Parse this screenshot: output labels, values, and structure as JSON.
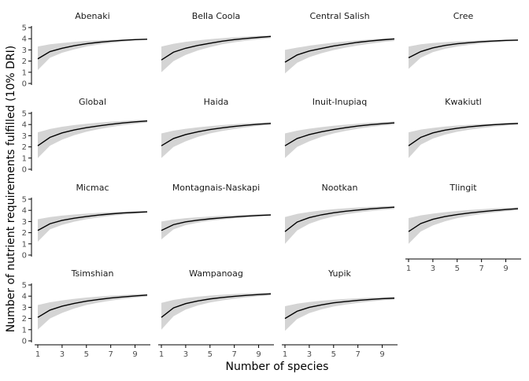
{
  "chart_data": {
    "type": "line",
    "ylabel": "Number of nutrient requirements fulfilled (10% DRI)",
    "xlabel": "Number of species",
    "x": [
      1,
      2,
      3,
      4,
      5,
      6,
      7,
      8,
      9,
      10
    ],
    "xticks": [
      1,
      3,
      5,
      7,
      9
    ],
    "yticks": [
      0,
      1,
      2,
      3,
      4,
      5
    ],
    "xlim": [
      1,
      10
    ],
    "ylim": [
      0,
      5
    ],
    "grid": false,
    "band": "shaded range around mean curve",
    "colors": {
      "line": "#000000",
      "band": "#d4d4d4"
    },
    "panels": [
      {
        "name": "Abenaki",
        "mean": [
          2.2,
          2.85,
          3.15,
          3.38,
          3.55,
          3.68,
          3.78,
          3.86,
          3.92,
          3.96
        ],
        "lower": [
          1.2,
          2.3,
          2.75,
          3.05,
          3.3,
          3.48,
          3.62,
          3.74,
          3.84,
          3.9
        ],
        "upper": [
          3.3,
          3.5,
          3.62,
          3.72,
          3.8,
          3.86,
          3.9,
          3.94,
          3.97,
          3.99
        ]
      },
      {
        "name": "Bella Coola",
        "mean": [
          2.1,
          2.8,
          3.15,
          3.4,
          3.6,
          3.78,
          3.92,
          4.03,
          4.12,
          4.2
        ],
        "lower": [
          1.0,
          2.0,
          2.55,
          2.95,
          3.25,
          3.5,
          3.68,
          3.83,
          3.95,
          4.05
        ],
        "upper": [
          3.3,
          3.55,
          3.72,
          3.85,
          3.96,
          4.05,
          4.13,
          4.2,
          4.26,
          4.3
        ]
      },
      {
        "name": "Central Salish",
        "mean": [
          1.9,
          2.55,
          2.9,
          3.13,
          3.35,
          3.52,
          3.68,
          3.8,
          3.9,
          3.98
        ],
        "lower": [
          0.9,
          1.85,
          2.35,
          2.7,
          2.98,
          3.2,
          3.4,
          3.56,
          3.7,
          3.8
        ],
        "upper": [
          3.0,
          3.2,
          3.38,
          3.52,
          3.65,
          3.76,
          3.86,
          3.94,
          4.01,
          4.06
        ]
      },
      {
        "name": "Cree",
        "mean": [
          2.3,
          2.85,
          3.18,
          3.4,
          3.55,
          3.65,
          3.74,
          3.8,
          3.85,
          3.88
        ],
        "lower": [
          1.3,
          2.3,
          2.8,
          3.1,
          3.3,
          3.45,
          3.57,
          3.66,
          3.74,
          3.8
        ],
        "upper": [
          3.3,
          3.5,
          3.62,
          3.7,
          3.76,
          3.81,
          3.85,
          3.88,
          3.91,
          3.93
        ]
      },
      {
        "name": "Global",
        "mean": [
          2.1,
          2.85,
          3.25,
          3.52,
          3.72,
          3.88,
          4.02,
          4.14,
          4.24,
          4.32
        ],
        "lower": [
          1.0,
          2.1,
          2.65,
          3.05,
          3.35,
          3.58,
          3.78,
          3.94,
          4.07,
          4.18
        ],
        "upper": [
          3.3,
          3.6,
          3.8,
          3.95,
          4.07,
          4.17,
          4.25,
          4.32,
          4.38,
          4.43
        ]
      },
      {
        "name": "Haida",
        "mean": [
          2.1,
          2.75,
          3.1,
          3.35,
          3.55,
          3.7,
          3.83,
          3.94,
          4.03,
          4.1
        ],
        "lower": [
          1.0,
          2.0,
          2.5,
          2.9,
          3.2,
          3.42,
          3.6,
          3.75,
          3.88,
          3.98
        ],
        "upper": [
          3.2,
          3.45,
          3.62,
          3.75,
          3.86,
          3.95,
          4.03,
          4.1,
          4.16,
          4.2
        ]
      },
      {
        "name": "Inuit-Inupiaq",
        "mean": [
          2.1,
          2.75,
          3.1,
          3.35,
          3.55,
          3.72,
          3.87,
          3.98,
          4.07,
          4.15
        ],
        "lower": [
          1.0,
          2.0,
          2.5,
          2.9,
          3.2,
          3.43,
          3.63,
          3.78,
          3.9,
          4.0
        ],
        "upper": [
          3.2,
          3.45,
          3.63,
          3.77,
          3.89,
          3.99,
          4.08,
          4.16,
          4.22,
          4.27
        ]
      },
      {
        "name": "Kwakiutl",
        "mean": [
          2.1,
          2.85,
          3.25,
          3.5,
          3.67,
          3.8,
          3.9,
          3.98,
          4.05,
          4.1
        ],
        "lower": [
          1.0,
          2.2,
          2.75,
          3.1,
          3.35,
          3.54,
          3.68,
          3.8,
          3.9,
          3.98
        ],
        "upper": [
          3.3,
          3.55,
          3.7,
          3.82,
          3.91,
          3.98,
          4.04,
          4.09,
          4.13,
          4.17
        ]
      },
      {
        "name": "Micmac",
        "mean": [
          2.2,
          2.8,
          3.1,
          3.3,
          3.45,
          3.58,
          3.68,
          3.76,
          3.82,
          3.87
        ],
        "lower": [
          1.2,
          2.3,
          2.7,
          2.98,
          3.2,
          3.37,
          3.5,
          3.61,
          3.7,
          3.77
        ],
        "upper": [
          3.2,
          3.4,
          3.53,
          3.63,
          3.71,
          3.78,
          3.83,
          3.87,
          3.9,
          3.93
        ]
      },
      {
        "name": "Montagnais-Naskapi",
        "mean": [
          2.2,
          2.72,
          2.97,
          3.12,
          3.24,
          3.33,
          3.41,
          3.48,
          3.54,
          3.59
        ],
        "lower": [
          1.4,
          2.3,
          2.68,
          2.9,
          3.06,
          3.18,
          3.28,
          3.37,
          3.45,
          3.52
        ],
        "upper": [
          3.0,
          3.18,
          3.3,
          3.38,
          3.45,
          3.51,
          3.56,
          3.6,
          3.64,
          3.67
        ]
      },
      {
        "name": "Nootkan",
        "mean": [
          2.1,
          2.95,
          3.35,
          3.6,
          3.78,
          3.92,
          4.03,
          4.13,
          4.21,
          4.28
        ],
        "lower": [
          1.0,
          2.2,
          2.8,
          3.18,
          3.45,
          3.64,
          3.8,
          3.93,
          4.04,
          4.13
        ],
        "upper": [
          3.4,
          3.68,
          3.86,
          4.0,
          4.1,
          4.18,
          4.25,
          4.31,
          4.36,
          4.4
        ]
      },
      {
        "name": "Tlingit",
        "mean": [
          2.1,
          2.82,
          3.2,
          3.45,
          3.62,
          3.76,
          3.88,
          3.98,
          4.07,
          4.15
        ],
        "lower": [
          1.0,
          2.1,
          2.65,
          3.02,
          3.3,
          3.5,
          3.67,
          3.8,
          3.92,
          4.02
        ],
        "upper": [
          3.3,
          3.55,
          3.71,
          3.84,
          3.94,
          4.03,
          4.1,
          4.17,
          4.22,
          4.27
        ]
      },
      {
        "name": "Tsimshian",
        "mean": [
          2.1,
          2.75,
          3.1,
          3.35,
          3.55,
          3.7,
          3.83,
          3.93,
          4.02,
          4.1
        ],
        "lower": [
          1.0,
          2.0,
          2.5,
          2.9,
          3.2,
          3.42,
          3.6,
          3.75,
          3.87,
          3.97
        ],
        "upper": [
          3.2,
          3.45,
          3.62,
          3.76,
          3.87,
          3.96,
          4.04,
          4.1,
          4.16,
          4.2
        ]
      },
      {
        "name": "Wampanoag",
        "mean": [
          2.1,
          2.95,
          3.33,
          3.57,
          3.75,
          3.88,
          3.98,
          4.07,
          4.14,
          4.2
        ],
        "lower": [
          1.0,
          2.2,
          2.8,
          3.17,
          3.43,
          3.62,
          3.77,
          3.89,
          3.99,
          4.07
        ],
        "upper": [
          3.4,
          3.66,
          3.83,
          3.95,
          4.05,
          4.13,
          4.19,
          4.24,
          4.28,
          4.31
        ]
      },
      {
        "name": "Yupik",
        "mean": [
          2.0,
          2.65,
          3.0,
          3.22,
          3.4,
          3.52,
          3.62,
          3.7,
          3.77,
          3.82
        ],
        "lower": [
          0.9,
          1.95,
          2.48,
          2.82,
          3.07,
          3.25,
          3.4,
          3.52,
          3.62,
          3.7
        ],
        "upper": [
          3.1,
          3.33,
          3.48,
          3.59,
          3.68,
          3.75,
          3.81,
          3.86,
          3.9,
          3.93
        ]
      }
    ]
  }
}
